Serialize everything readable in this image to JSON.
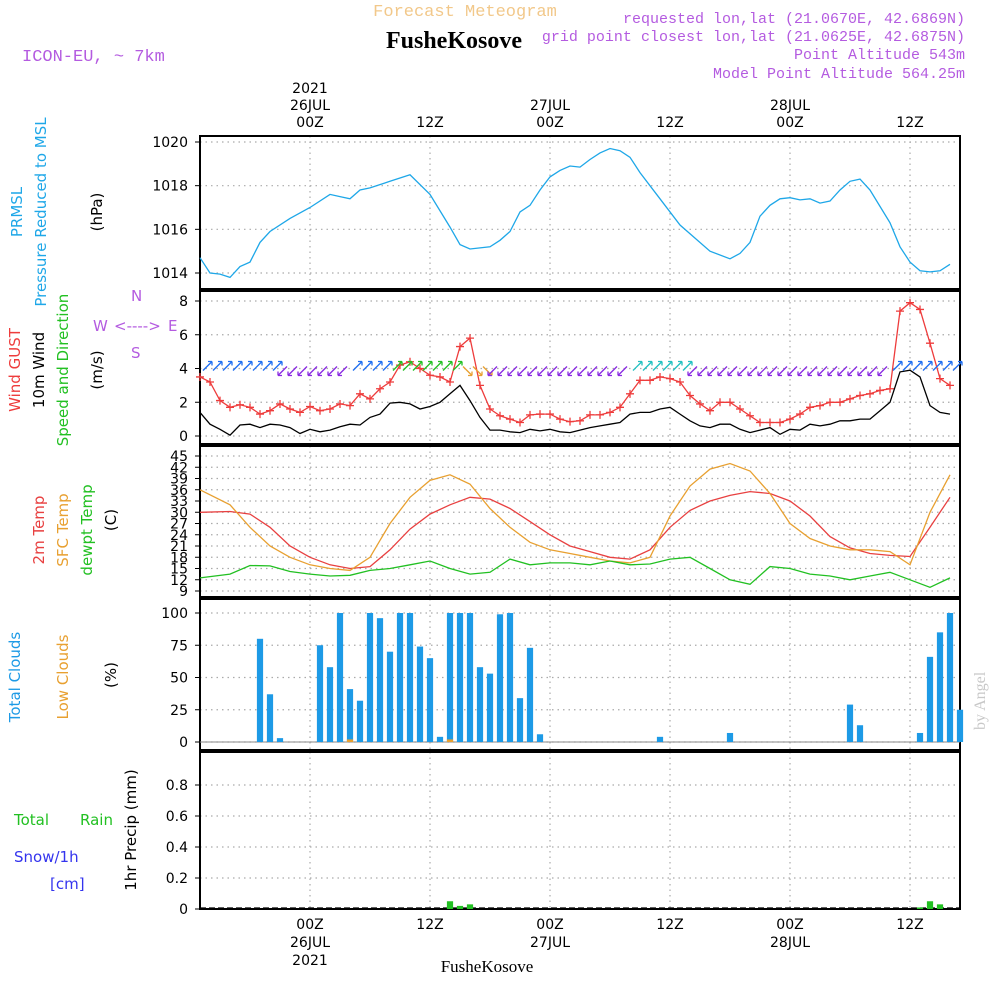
{
  "header": {
    "title": "Forecast Meteogram",
    "station": "FusheKosove",
    "model": "ICON-EU, ~ 7km",
    "requested": "requested lon,lat (21.0670E, 42.6869N)",
    "closest": "grid point closest lon,lat (21.0625E, 42.6875N)",
    "point_alt": "Point Altitude 543m",
    "model_alt": "Model Point Altitude 564.25m",
    "watermark": "by Angel",
    "footer": "FusheKosove"
  },
  "time_axis": {
    "labels": [
      {
        "hour": 0,
        "top": [
          "2021",
          "26JUL",
          "00Z"
        ],
        "bottom": [
          "00Z",
          "26JUL",
          "2021"
        ]
      },
      {
        "hour": 12,
        "top": [
          "12Z"
        ],
        "bottom": [
          "12Z"
        ]
      },
      {
        "hour": 24,
        "top": [
          "27JUL",
          "00Z"
        ],
        "bottom": [
          "00Z",
          "27JUL"
        ]
      },
      {
        "hour": 36,
        "top": [
          "12Z"
        ],
        "bottom": [
          "12Z"
        ]
      },
      {
        "hour": 48,
        "top": [
          "28JUL",
          "00Z"
        ],
        "bottom": [
          "00Z",
          "28JUL"
        ]
      },
      {
        "hour": 60,
        "top": [
          "12Z"
        ],
        "bottom": [
          "12Z"
        ]
      }
    ],
    "start_hour": -11,
    "end_hour": 65
  },
  "panels": {
    "pressure": {
      "labels": [
        "PRMSL",
        "Pressure Reduced to MSL",
        "(hPa)"
      ],
      "ticks": [
        1014,
        1016,
        1018,
        1020
      ]
    },
    "wind": {
      "labels": [
        "Wind GUST",
        "10m Wind",
        "Speed and Direction",
        "(m/s)"
      ],
      "ticks": [
        0,
        2,
        4,
        6,
        8
      ],
      "compass": [
        "N",
        "S",
        "W",
        "E",
        "<---->"
      ]
    },
    "temp": {
      "labels": [
        "2m Temp",
        "SFC Temp",
        "dewpt Temp",
        "(C)"
      ],
      "ticks": [
        9,
        12,
        15,
        18,
        21,
        24,
        27,
        30,
        33,
        36,
        39,
        42,
        45
      ]
    },
    "clouds": {
      "labels": [
        "Total Clouds",
        "Low Clouds",
        "(%)"
      ],
      "ticks": [
        0,
        25,
        50,
        75,
        100
      ]
    },
    "precip": {
      "labels": [
        "Total",
        "Rain",
        "Snow/1h",
        "[cm]",
        "1hr Precip (mm)"
      ],
      "ticks": [
        0,
        0.2,
        0.4,
        0.6,
        0.8
      ]
    }
  },
  "colors": {
    "pressure": "#1ea7e8",
    "gust": "#ee3c3c",
    "wind": "#000000",
    "t2m": "#e84040",
    "sfc": "#e8a030",
    "dew": "#22c022",
    "cloud": "#1d9ae6",
    "lowcloud": "#e8a030",
    "rain": "#22c022",
    "snow": "#3434ee",
    "magenta": "#b45be0",
    "gold": "#f2c88a"
  },
  "chart_data": [
    {
      "type": "line",
      "panel": "pressure",
      "ylabel": "(hPa)",
      "ylim": [
        1013.5,
        1020.5
      ],
      "series": [
        {
          "name": "PRMSL",
          "x": [
            -11,
            -10,
            -9,
            -8,
            -7,
            -6,
            -5,
            -4,
            -2,
            0,
            2,
            3,
            4,
            5,
            6,
            8,
            10,
            12,
            14,
            15,
            16,
            18,
            19,
            20,
            21,
            22,
            23,
            24,
            25,
            26,
            27,
            28,
            29,
            30,
            31,
            32,
            33,
            35,
            37,
            40,
            42,
            43,
            44,
            45,
            46,
            47,
            48,
            49,
            50,
            51,
            52,
            53,
            54,
            55,
            56,
            58,
            59,
            60,
            61,
            62,
            63,
            64
          ],
          "y": [
            1014.7,
            1014.0,
            1013.95,
            1013.8,
            1014.3,
            1014.5,
            1015.4,
            1015.9,
            1016.5,
            1017.0,
            1017.6,
            1017.5,
            1017.4,
            1017.8,
            1017.9,
            1018.2,
            1018.5,
            1017.6,
            1016.1,
            1015.3,
            1015.1,
            1015.2,
            1015.5,
            1015.9,
            1016.8,
            1017.1,
            1017.8,
            1018.4,
            1018.7,
            1018.9,
            1018.85,
            1019.2,
            1019.5,
            1019.7,
            1019.6,
            1019.3,
            1018.6,
            1017.4,
            1016.2,
            1015.0,
            1014.65,
            1014.9,
            1015.4,
            1016.6,
            1017.1,
            1017.4,
            1017.45,
            1017.35,
            1017.4,
            1017.2,
            1017.3,
            1017.8,
            1018.2,
            1018.3,
            1017.8,
            1016.3,
            1015.2,
            1014.5,
            1014.1,
            1014.05,
            1014.1,
            1014.4
          ]
        }
      ]
    },
    {
      "type": "line",
      "panel": "wind",
      "ylabel": "(m/s)",
      "ylim": [
        -0.3,
        8.8
      ],
      "series": [
        {
          "name": "Wind GUST",
          "x": [
            -11,
            -10,
            -9,
            -8,
            -7,
            -6,
            -5,
            -4,
            -3,
            -2,
            -1,
            0,
            1,
            2,
            3,
            4,
            5,
            6,
            7,
            8,
            9,
            10,
            11,
            12,
            13,
            14,
            15,
            16,
            17,
            18,
            19,
            20,
            21,
            22,
            23,
            24,
            25,
            26,
            27,
            28,
            29,
            30,
            31,
            32,
            33,
            34,
            35,
            36,
            37,
            38,
            39,
            40,
            41,
            42,
            43,
            44,
            45,
            46,
            47,
            48,
            49,
            50,
            51,
            52,
            53,
            54,
            55,
            56,
            57,
            58,
            59,
            60,
            61,
            62,
            63,
            64
          ],
          "y": [
            3.5,
            3.2,
            2.1,
            1.7,
            1.85,
            1.7,
            1.3,
            1.5,
            1.9,
            1.6,
            1.4,
            1.75,
            1.5,
            1.6,
            1.9,
            1.8,
            2.5,
            2.2,
            2.8,
            3.2,
            4.2,
            4.4,
            4.0,
            3.6,
            3.5,
            3.2,
            5.3,
            5.8,
            3.0,
            1.6,
            1.2,
            1.0,
            0.8,
            1.25,
            1.3,
            1.3,
            1.0,
            0.85,
            0.9,
            1.25,
            1.25,
            1.4,
            1.7,
            2.5,
            3.3,
            3.3,
            3.5,
            3.4,
            3.2,
            2.4,
            1.9,
            1.5,
            2.0,
            2.0,
            1.6,
            1.2,
            0.8,
            0.8,
            0.8,
            1.0,
            1.3,
            1.7,
            1.8,
            2.0,
            2.0,
            2.2,
            2.4,
            2.5,
            2.7,
            2.8,
            7.4,
            7.9,
            7.5,
            5.5,
            3.4,
            3.0
          ]
        },
        {
          "name": "10m Wind",
          "x": [
            -11,
            -10,
            -9,
            -8,
            -7,
            -6,
            -5,
            -4,
            -3,
            -2,
            -1,
            0,
            1,
            2,
            3,
            4,
            5,
            6,
            7,
            8,
            9,
            10,
            11,
            12,
            13,
            14,
            15,
            16,
            17,
            18,
            19,
            20,
            21,
            22,
            23,
            24,
            25,
            26,
            27,
            28,
            29,
            30,
            31,
            32,
            33,
            34,
            35,
            36,
            37,
            38,
            39,
            40,
            41,
            42,
            43,
            44,
            45,
            46,
            47,
            48,
            49,
            50,
            51,
            52,
            53,
            54,
            55,
            56,
            57,
            58,
            59,
            60,
            61,
            62,
            63,
            64
          ],
          "y": [
            1.4,
            0.7,
            0.4,
            0.05,
            0.65,
            0.7,
            0.5,
            0.7,
            0.65,
            0.5,
            0.15,
            0.4,
            0.25,
            0.35,
            0.55,
            0.7,
            0.65,
            1.1,
            1.3,
            1.95,
            2.0,
            1.9,
            1.6,
            1.75,
            2.0,
            2.5,
            3.0,
            2.1,
            1.1,
            0.35,
            0.35,
            0.25,
            0.2,
            0.4,
            0.3,
            0.4,
            0.25,
            0.2,
            0.35,
            0.5,
            0.6,
            0.7,
            0.8,
            1.3,
            1.4,
            1.4,
            1.6,
            1.7,
            1.3,
            0.9,
            0.6,
            0.5,
            0.7,
            0.7,
            0.4,
            0.2,
            0.35,
            0.5,
            0.1,
            0.4,
            0.35,
            0.7,
            0.6,
            0.7,
            0.9,
            0.9,
            1.0,
            1.0,
            1.5,
            2.0,
            3.8,
            3.9,
            3.5,
            1.8,
            1.4,
            1.3
          ]
        }
      ],
      "direction_arrows": {
        "level": 4,
        "segments": [
          {
            "x": [
              -11,
              -3
            ],
            "dir": "NE",
            "color": "#1e6ef0"
          },
          {
            "x": [
              -3,
              4
            ],
            "dir": "SW",
            "color": "#8a2be2"
          },
          {
            "x": [
              4,
              8
            ],
            "dir": "NE",
            "color": "#1e6ef0"
          },
          {
            "x": [
              8,
              15
            ],
            "dir": "NE",
            "color": "#22c022"
          },
          {
            "x": [
              15,
              18
            ],
            "dir": "SE",
            "color": "#e8a030"
          },
          {
            "x": [
              18,
              32
            ],
            "dir": "SW",
            "color": "#8a2be2"
          },
          {
            "x": [
              32,
              38
            ],
            "dir": "NE",
            "color": "#20c0c0"
          },
          {
            "x": [
              38,
              48
            ],
            "dir": "SW",
            "color": "#8a2be2"
          },
          {
            "x": [
              48,
              58
            ],
            "dir": "SW",
            "color": "#8a2be2"
          },
          {
            "x": [
              58,
              65
            ],
            "dir": "NE",
            "color": "#1e6ef0"
          }
        ]
      }
    },
    {
      "type": "line",
      "panel": "temp",
      "ylabel": "(C)",
      "ylim": [
        8,
        46
      ],
      "series": [
        {
          "name": "2m Temp",
          "x": [
            -11,
            -8,
            -6,
            -4,
            -2,
            0,
            2,
            4,
            6,
            8,
            10,
            12,
            14,
            16,
            18,
            20,
            22,
            24,
            26,
            28,
            30,
            32,
            34,
            36,
            38,
            40,
            42,
            44,
            46,
            48,
            50,
            52,
            54,
            56,
            58,
            60,
            62,
            64
          ],
          "y": [
            30.0,
            30.2,
            29.5,
            26.0,
            21.0,
            18.0,
            16.0,
            15.0,
            15.5,
            20.0,
            25.5,
            29.5,
            32.0,
            34.0,
            33.5,
            31.0,
            27.5,
            24.0,
            21.0,
            19.5,
            18.0,
            17.5,
            20.0,
            26.0,
            30.5,
            33.0,
            34.5,
            35.5,
            35.0,
            33.0,
            29.0,
            23.5,
            20.5,
            19.0,
            18.5,
            18.2,
            26.0,
            34.0
          ]
        },
        {
          "name": "SFC Temp",
          "x": [
            -11,
            -8,
            -6,
            -4,
            -2,
            0,
            2,
            4,
            6,
            8,
            10,
            12,
            14,
            16,
            18,
            20,
            22,
            24,
            26,
            28,
            30,
            32,
            34,
            36,
            38,
            40,
            42,
            44,
            46,
            48,
            50,
            52,
            54,
            56,
            58,
            60,
            62,
            64
          ],
          "y": [
            36.0,
            32.0,
            26.0,
            21.0,
            18.0,
            16.0,
            15.0,
            14.5,
            18.0,
            27.0,
            34.0,
            38.5,
            40.0,
            37.5,
            31.0,
            26.0,
            22.0,
            20.0,
            19.0,
            18.0,
            17.0,
            16.5,
            18.0,
            29.0,
            37.0,
            41.5,
            43.0,
            41.0,
            35.0,
            27.0,
            23.0,
            21.0,
            20.0,
            20.0,
            19.5,
            16.0,
            30.0,
            40.0
          ]
        },
        {
          "name": "dewpt Temp",
          "x": [
            -11,
            -8,
            -6,
            -4,
            -2,
            0,
            2,
            4,
            6,
            8,
            10,
            12,
            14,
            16,
            18,
            20,
            22,
            24,
            26,
            28,
            30,
            32,
            34,
            36,
            38,
            40,
            42,
            44,
            46,
            48,
            50,
            52,
            54,
            56,
            58,
            60,
            62,
            64
          ],
          "y": [
            12.5,
            13.5,
            15.8,
            15.7,
            14.2,
            13.5,
            13.0,
            13.2,
            14.5,
            15.0,
            16.0,
            17.0,
            15.0,
            13.5,
            14.0,
            17.5,
            16.0,
            16.5,
            16.5,
            16.0,
            17.0,
            16.0,
            16.2,
            17.5,
            18.0,
            15.0,
            12.0,
            10.8,
            15.5,
            15.0,
            13.5,
            13.0,
            12.0,
            13.0,
            14.0,
            12.0,
            10.0,
            12.5
          ]
        }
      ]
    },
    {
      "type": "bar",
      "panel": "clouds",
      "ylabel": "(%)",
      "ylim": [
        0,
        100
      ],
      "series": [
        {
          "name": "Total Clouds",
          "x": [
            -5,
            -4,
            -3,
            1,
            2,
            3,
            4,
            5,
            6,
            7,
            8,
            9,
            10,
            11,
            12,
            13,
            14,
            15,
            16,
            17,
            18,
            19,
            20,
            21,
            22,
            23,
            35,
            42,
            54,
            55,
            61,
            62,
            63,
            64,
            65
          ],
          "y": [
            80,
            37,
            3,
            75,
            58,
            100,
            41,
            32,
            100,
            96,
            70,
            100,
            100,
            74,
            65,
            4,
            100,
            100,
            100,
            58,
            53,
            99,
            100,
            34,
            73,
            6,
            4,
            7,
            29,
            13,
            7,
            66,
            85,
            100,
            25
          ]
        },
        {
          "name": "Low Clouds",
          "x": [
            4,
            14
          ],
          "y": [
            2,
            2
          ]
        }
      ]
    },
    {
      "type": "bar",
      "panel": "precip",
      "ylabel": "1hr Precip (mm)",
      "ylim": [
        0,
        1
      ],
      "series": [
        {
          "name": "Total Rain",
          "x": [
            14,
            15,
            16,
            61,
            62,
            63
          ],
          "y": [
            0.05,
            0.02,
            0.03,
            0.01,
            0.05,
            0.03
          ]
        }
      ]
    }
  ]
}
